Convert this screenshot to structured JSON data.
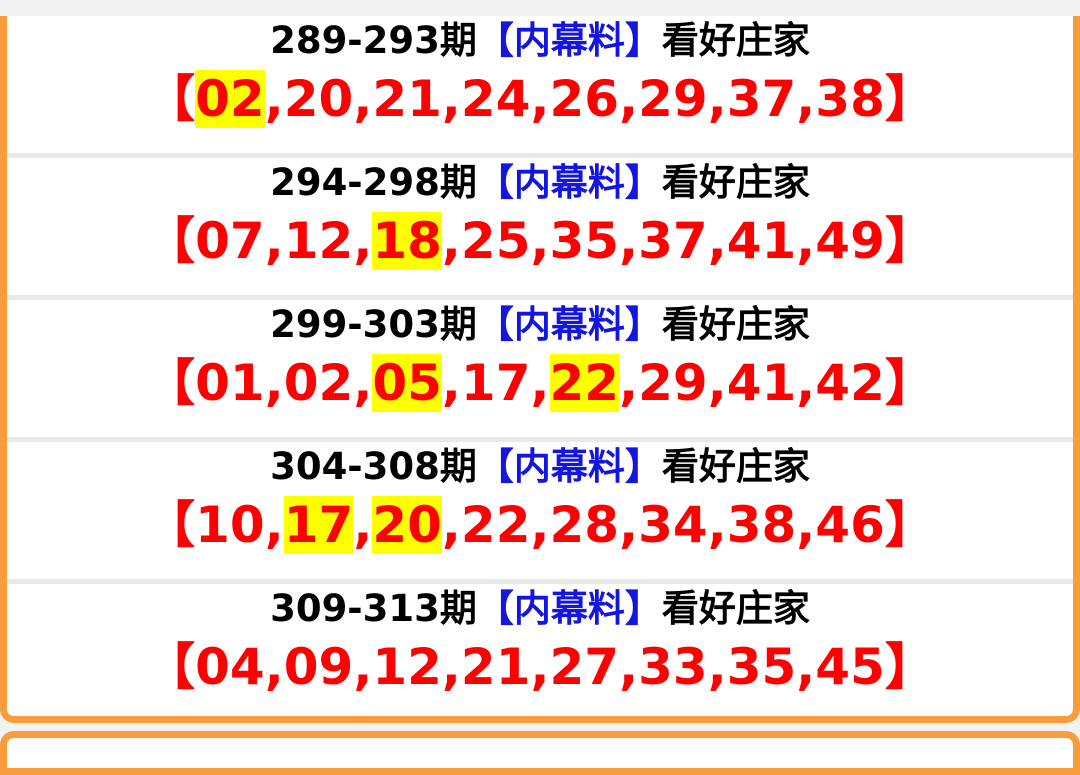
{
  "colors": {
    "accent_border": "#f89c3c",
    "number_red": "#ff0000",
    "tag_blue": "#1515e0",
    "highlight": "#ffff00"
  },
  "rows": [
    {
      "period": "289-293期",
      "tag": "【内幕料】",
      "suffix": "看好庄家",
      "numbers": [
        "02",
        "20",
        "21",
        "24",
        "26",
        "29",
        "37",
        "38"
      ],
      "highlighted": [
        "02"
      ]
    },
    {
      "period": "294-298期",
      "tag": "【内幕料】",
      "suffix": "看好庄家",
      "numbers": [
        "07",
        "12",
        "18",
        "25",
        "35",
        "37",
        "41",
        "49"
      ],
      "highlighted": [
        "18"
      ]
    },
    {
      "period": "299-303期",
      "tag": "【内幕料】",
      "suffix": "看好庄家",
      "numbers": [
        "01",
        "02",
        "05",
        "17",
        "22",
        "29",
        "41",
        "42"
      ],
      "highlighted": [
        "05",
        "22"
      ]
    },
    {
      "period": "304-308期",
      "tag": "【内幕料】",
      "suffix": "看好庄家",
      "numbers": [
        "10",
        "17",
        "20",
        "22",
        "28",
        "34",
        "38",
        "46"
      ],
      "highlighted": [
        "17",
        "20"
      ]
    },
    {
      "period": "309-313期",
      "tag": "【内幕料】",
      "suffix": "看好庄家",
      "numbers": [
        "04",
        "09",
        "12",
        "21",
        "27",
        "33",
        "35",
        "45"
      ],
      "highlighted": []
    }
  ]
}
